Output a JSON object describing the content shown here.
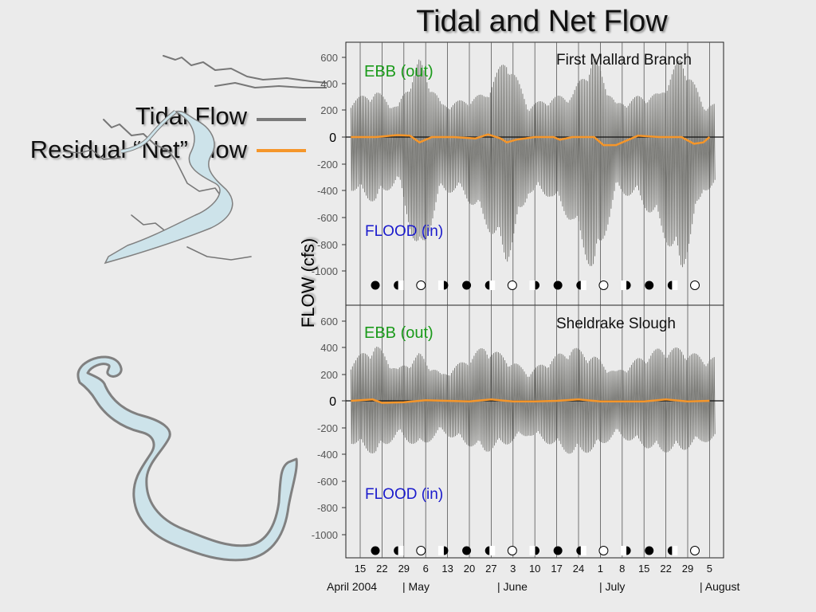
{
  "slide": {
    "title": "Tidal and Net Flow",
    "ylabel": "FLOW (cfs)",
    "legend": [
      {
        "label": "Tidal Flow",
        "color": "#7a7a7a"
      },
      {
        "label": "Residual “Net” Flow",
        "color": "#f5962a"
      }
    ]
  },
  "colors": {
    "tidal": "#6f6f6a",
    "net": "#f5962a",
    "ebb": "#1a9a1a",
    "flood": "#1a1acc",
    "river": "#cde3ea",
    "river_outline": "#808080"
  },
  "icons": [
    "map-first-mallard-branch",
    "map-sheldrake-slough",
    "moon-phase-icons"
  ],
  "x_axis": {
    "tick_labels": [
      "15",
      "22",
      "29",
      "6",
      "13",
      "20",
      "27",
      "3",
      "10",
      "17",
      "24",
      "1",
      "8",
      "15",
      "22",
      "29",
      "5"
    ],
    "month_labels": [
      "April 2004",
      "| May",
      "| June",
      "| July",
      "| August"
    ]
  },
  "moon_phases": [
    "new",
    "first",
    "full",
    "last",
    "new",
    "first",
    "full",
    "last",
    "new",
    "first",
    "full",
    "last",
    "new",
    "first",
    "full"
  ],
  "chart_data": [
    {
      "type": "line",
      "title": "First Mallard Branch",
      "y_tick_labels": [
        "600",
        "400",
        "200",
        "0",
        "-200",
        "-400",
        "-600",
        "-800",
        "-1000"
      ],
      "ylim": [
        -1150,
        700
      ],
      "annotations": {
        "ebb": "EBB (out)",
        "flood": "FLOOD (in)"
      },
      "x_start": "2004-04-12",
      "x_end": "2004-08-07",
      "grid": "vertical weekly lines",
      "series": [
        {
          "name": "Tidal Flow",
          "envelope": {
            "note": "tidal flow oscillates between max and min at each date",
            "dates": [
              "2004-04-12",
              "2004-04-20",
              "2004-04-27",
              "2004-05-04",
              "2004-05-11",
              "2004-05-18",
              "2004-05-25",
              "2004-06-01",
              "2004-06-08",
              "2004-06-15",
              "2004-06-22",
              "2004-06-29",
              "2004-07-06",
              "2004-07-13",
              "2004-07-20",
              "2004-07-27",
              "2004-08-03",
              "2004-08-07"
            ],
            "max": [
              280,
              350,
              230,
              590,
              250,
              280,
              330,
              620,
              240,
              300,
              330,
              620,
              250,
              310,
              330,
              620,
              250,
              250
            ],
            "min": [
              -400,
              -500,
              -330,
              -960,
              -410,
              -430,
              -650,
              -950,
              -420,
              -450,
              -650,
              -1060,
              -420,
              -460,
              -680,
              -1040,
              -400,
              -400
            ]
          }
        },
        {
          "name": "Residual “Net” Flow",
          "dates": [
            "2004-04-12",
            "2004-04-20",
            "2004-04-27",
            "2004-05-01",
            "2004-05-04",
            "2004-05-08",
            "2004-05-15",
            "2004-05-22",
            "2004-05-26",
            "2004-05-30",
            "2004-06-01",
            "2004-06-04",
            "2004-06-10",
            "2004-06-16",
            "2004-06-18",
            "2004-06-22",
            "2004-06-29",
            "2004-07-02",
            "2004-07-06",
            "2004-07-13",
            "2004-07-20",
            "2004-07-27",
            "2004-07-31",
            "2004-08-03",
            "2004-08-05"
          ],
          "values": [
            0,
            0,
            15,
            10,
            -40,
            0,
            0,
            -10,
            20,
            -10,
            -40,
            -20,
            0,
            0,
            -20,
            0,
            0,
            -60,
            -60,
            10,
            0,
            0,
            -50,
            -40,
            0
          ]
        }
      ]
    },
    {
      "type": "line",
      "title": "Sheldrake Slough",
      "y_tick_labels": [
        "600",
        "400",
        "200",
        "0",
        "-200",
        "-400",
        "-600",
        "-800",
        "-1000"
      ],
      "ylim": [
        -1150,
        700
      ],
      "annotations": {
        "ebb": "EBB (out)",
        "flood": "FLOOD (in)"
      },
      "x_start": "2004-04-12",
      "x_end": "2004-08-07",
      "grid": "vertical weekly lines",
      "series": [
        {
          "name": "Tidal Flow",
          "envelope": {
            "note": "tidal flow oscillates between max and min at each date",
            "dates": [
              "2004-04-12",
              "2004-04-20",
              "2004-04-27",
              "2004-05-04",
              "2004-05-11",
              "2004-05-18",
              "2004-05-25",
              "2004-06-01",
              "2004-06-08",
              "2004-06-15",
              "2004-06-22",
              "2004-06-29",
              "2004-07-06",
              "2004-07-13",
              "2004-07-20",
              "2004-07-27",
              "2004-08-03",
              "2004-08-07"
            ],
            "max": [
              300,
              430,
              240,
              360,
              200,
              300,
              420,
              330,
              220,
              320,
              410,
              340,
              220,
              320,
              400,
              400,
              330,
              330
            ],
            "min": [
              -320,
              -410,
              -260,
              -360,
              -240,
              -320,
              -390,
              -330,
              -260,
              -330,
              -410,
              -380,
              -260,
              -330,
              -390,
              -380,
              -310,
              -310
            ]
          }
        },
        {
          "name": "Residual “Net” Flow",
          "dates": [
            "2004-04-12",
            "2004-04-19",
            "2004-04-22",
            "2004-04-29",
            "2004-05-06",
            "2004-05-13",
            "2004-05-20",
            "2004-05-27",
            "2004-06-03",
            "2004-06-10",
            "2004-06-17",
            "2004-06-24",
            "2004-07-01",
            "2004-07-08",
            "2004-07-15",
            "2004-07-22",
            "2004-07-29",
            "2004-08-05"
          ],
          "values": [
            0,
            10,
            -15,
            -10,
            5,
            0,
            -5,
            10,
            -5,
            -5,
            0,
            10,
            -5,
            -5,
            -5,
            10,
            -5,
            0
          ]
        }
      ]
    }
  ]
}
